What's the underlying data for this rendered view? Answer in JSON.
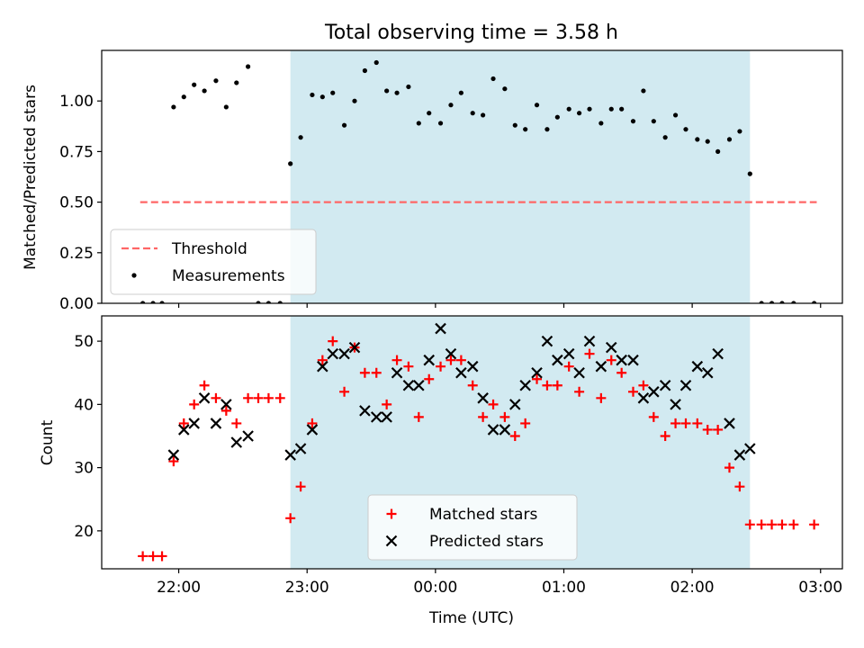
{
  "chart_data": [
    {
      "type": "scatter",
      "title": "Total observing time = 3.58 h",
      "ylabel": "Matched/Predicted stars",
      "xlabel": "",
      "x_unit": "hours (UTC, 00:00 = 0)",
      "xlim": [
        -2.6,
        3.17
      ],
      "ylim": [
        0,
        1.25
      ],
      "y_ticks": [
        0.0,
        0.25,
        0.5,
        0.75,
        1.0
      ],
      "y_tick_labels": [
        "0.00",
        "0.25",
        "0.50",
        "0.75",
        "1.00"
      ],
      "x_ticks": [
        -2,
        -1,
        0,
        1,
        2,
        3
      ],
      "shaded_interval": [
        -1.13,
        2.45
      ],
      "shaded_color": "#add8e6",
      "legend_position": "lower-left",
      "series": [
        {
          "name": "Threshold",
          "style": "dashed-line",
          "color": "#ff6666",
          "x": [
            -2.3,
            2.97
          ],
          "y": [
            0.5,
            0.5
          ]
        },
        {
          "name": "Measurements",
          "style": "dot",
          "color": "#000000",
          "points": [
            [
              -2.28,
              0.0
            ],
            [
              -2.2,
              0.0
            ],
            [
              -2.13,
              0.0
            ],
            [
              -2.04,
              0.97
            ],
            [
              -1.96,
              1.02
            ],
            [
              -1.88,
              1.08
            ],
            [
              -1.8,
              1.05
            ],
            [
              -1.71,
              1.1
            ],
            [
              -1.63,
              0.97
            ],
            [
              -1.55,
              1.09
            ],
            [
              -1.46,
              1.17
            ],
            [
              -1.38,
              0.0
            ],
            [
              -1.3,
              0.0
            ],
            [
              -1.21,
              0.0
            ],
            [
              -1.13,
              0.69
            ],
            [
              -1.05,
              0.82
            ],
            [
              -0.96,
              1.03
            ],
            [
              -0.88,
              1.02
            ],
            [
              -0.8,
              1.04
            ],
            [
              -0.71,
              0.88
            ],
            [
              -0.63,
              1.0
            ],
            [
              -0.55,
              1.15
            ],
            [
              -0.46,
              1.19
            ],
            [
              -0.38,
              1.05
            ],
            [
              -0.3,
              1.04
            ],
            [
              -0.21,
              1.07
            ],
            [
              -0.13,
              0.89
            ],
            [
              -0.05,
              0.94
            ],
            [
              0.04,
              0.89
            ],
            [
              0.12,
              0.98
            ],
            [
              0.2,
              1.04
            ],
            [
              0.29,
              0.94
            ],
            [
              0.37,
              0.93
            ],
            [
              0.45,
              1.11
            ],
            [
              0.54,
              1.06
            ],
            [
              0.62,
              0.88
            ],
            [
              0.7,
              0.86
            ],
            [
              0.79,
              0.98
            ],
            [
              0.87,
              0.86
            ],
            [
              0.95,
              0.92
            ],
            [
              1.04,
              0.96
            ],
            [
              1.12,
              0.94
            ],
            [
              1.2,
              0.96
            ],
            [
              1.29,
              0.89
            ],
            [
              1.37,
              0.96
            ],
            [
              1.45,
              0.96
            ],
            [
              1.54,
              0.9
            ],
            [
              1.62,
              1.05
            ],
            [
              1.7,
              0.9
            ],
            [
              1.79,
              0.82
            ],
            [
              1.87,
              0.93
            ],
            [
              1.95,
              0.86
            ],
            [
              2.04,
              0.81
            ],
            [
              2.12,
              0.8
            ],
            [
              2.2,
              0.75
            ],
            [
              2.29,
              0.81
            ],
            [
              2.37,
              0.85
            ],
            [
              2.45,
              0.64
            ],
            [
              2.54,
              0.0
            ],
            [
              2.62,
              0.0
            ],
            [
              2.7,
              0.0
            ],
            [
              2.79,
              0.0
            ],
            [
              2.95,
              0.0
            ]
          ]
        }
      ]
    },
    {
      "type": "scatter",
      "title": "",
      "ylabel": "Count",
      "xlabel": "Time (UTC)",
      "xlim": [
        -2.6,
        3.17
      ],
      "ylim": [
        14,
        54
      ],
      "y_ticks": [
        20,
        30,
        40,
        50
      ],
      "y_tick_labels": [
        "20",
        "30",
        "40",
        "50"
      ],
      "x_ticks": [
        -2,
        -1,
        0,
        1,
        2,
        3
      ],
      "x_tick_labels": [
        "22:00",
        "23:00",
        "00:00",
        "01:00",
        "02:00",
        "03:00"
      ],
      "shaded_interval": [
        -1.13,
        2.45
      ],
      "shaded_color": "#add8e6",
      "legend_position": "lower-center",
      "series": [
        {
          "name": "Matched stars",
          "style": "plus",
          "color": "#ff0000",
          "points": [
            [
              -2.28,
              16
            ],
            [
              -2.2,
              16
            ],
            [
              -2.13,
              16
            ],
            [
              -2.04,
              31
            ],
            [
              -1.96,
              37
            ],
            [
              -1.88,
              40
            ],
            [
              -1.8,
              43
            ],
            [
              -1.71,
              41
            ],
            [
              -1.63,
              39
            ],
            [
              -1.55,
              37
            ],
            [
              -1.46,
              41
            ],
            [
              -1.38,
              41
            ],
            [
              -1.3,
              41
            ],
            [
              -1.21,
              41
            ],
            [
              -1.13,
              22
            ],
            [
              -1.05,
              27
            ],
            [
              -0.96,
              37
            ],
            [
              -0.88,
              47
            ],
            [
              -0.8,
              50
            ],
            [
              -0.71,
              42
            ],
            [
              -0.63,
              49
            ],
            [
              -0.55,
              45
            ],
            [
              -0.46,
              45
            ],
            [
              -0.38,
              40
            ],
            [
              -0.3,
              47
            ],
            [
              -0.21,
              46
            ],
            [
              -0.13,
              38
            ],
            [
              -0.05,
              44
            ],
            [
              0.04,
              46
            ],
            [
              0.12,
              47
            ],
            [
              0.2,
              47
            ],
            [
              0.29,
              43
            ],
            [
              0.37,
              38
            ],
            [
              0.45,
              40
            ],
            [
              0.54,
              38
            ],
            [
              0.62,
              35
            ],
            [
              0.7,
              37
            ],
            [
              0.79,
              44
            ],
            [
              0.87,
              43
            ],
            [
              0.95,
              43
            ],
            [
              1.04,
              46
            ],
            [
              1.12,
              42
            ],
            [
              1.2,
              48
            ],
            [
              1.29,
              41
            ],
            [
              1.37,
              47
            ],
            [
              1.45,
              45
            ],
            [
              1.54,
              42
            ],
            [
              1.62,
              43
            ],
            [
              1.7,
              38
            ],
            [
              1.79,
              35
            ],
            [
              1.87,
              37
            ],
            [
              1.95,
              37
            ],
            [
              2.04,
              37
            ],
            [
              2.12,
              36
            ],
            [
              2.2,
              36
            ],
            [
              2.29,
              30
            ],
            [
              2.37,
              27
            ],
            [
              2.45,
              21
            ],
            [
              2.54,
              21
            ],
            [
              2.62,
              21
            ],
            [
              2.7,
              21
            ],
            [
              2.79,
              21
            ],
            [
              2.95,
              21
            ]
          ]
        },
        {
          "name": "Predicted stars",
          "style": "x",
          "color": "#000000",
          "points": [
            [
              -2.04,
              32
            ],
            [
              -1.96,
              36
            ],
            [
              -1.88,
              37
            ],
            [
              -1.8,
              41
            ],
            [
              -1.71,
              37
            ],
            [
              -1.63,
              40
            ],
            [
              -1.55,
              34
            ],
            [
              -1.46,
              35
            ],
            [
              -1.13,
              32
            ],
            [
              -1.05,
              33
            ],
            [
              -0.96,
              36
            ],
            [
              -0.88,
              46
            ],
            [
              -0.8,
              48
            ],
            [
              -0.71,
              48
            ],
            [
              -0.63,
              49
            ],
            [
              -0.55,
              39
            ],
            [
              -0.46,
              38
            ],
            [
              -0.38,
              38
            ],
            [
              -0.3,
              45
            ],
            [
              -0.21,
              43
            ],
            [
              -0.13,
              43
            ],
            [
              -0.05,
              47
            ],
            [
              0.04,
              52
            ],
            [
              0.12,
              48
            ],
            [
              0.2,
              45
            ],
            [
              0.29,
              46
            ],
            [
              0.37,
              41
            ],
            [
              0.45,
              36
            ],
            [
              0.54,
              36
            ],
            [
              0.62,
              40
            ],
            [
              0.7,
              43
            ],
            [
              0.79,
              45
            ],
            [
              0.87,
              50
            ],
            [
              0.95,
              47
            ],
            [
              1.04,
              48
            ],
            [
              1.12,
              45
            ],
            [
              1.2,
              50
            ],
            [
              1.29,
              46
            ],
            [
              1.37,
              49
            ],
            [
              1.45,
              47
            ],
            [
              1.54,
              47
            ],
            [
              1.62,
              41
            ],
            [
              1.7,
              42
            ],
            [
              1.79,
              43
            ],
            [
              1.87,
              40
            ],
            [
              1.95,
              43
            ],
            [
              2.04,
              46
            ],
            [
              2.12,
              45
            ],
            [
              2.2,
              48
            ],
            [
              2.29,
              37
            ],
            [
              2.37,
              32
            ],
            [
              2.45,
              33
            ]
          ]
        }
      ]
    }
  ]
}
